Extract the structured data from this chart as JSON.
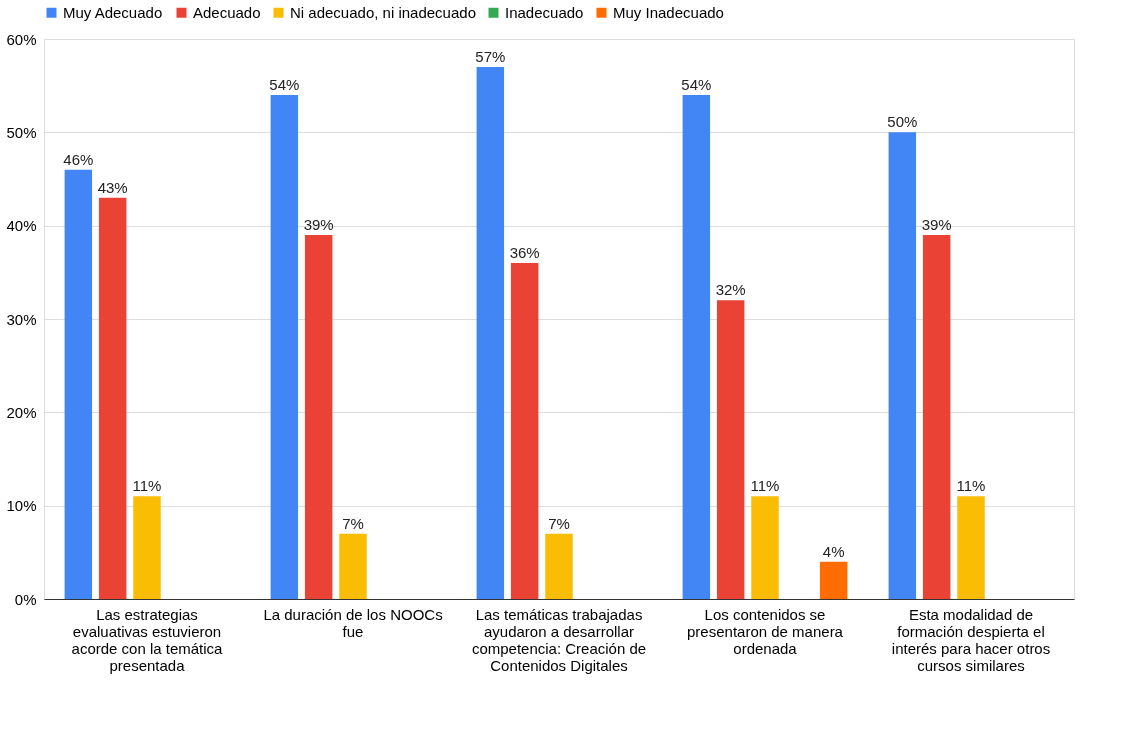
{
  "chart_data": {
    "type": "bar",
    "categories": [
      "Las estrategias evaluativas estuvieron acorde con la temática presentada",
      "La duración de los NOOCs fue",
      "Las temáticas trabajadas ayudaron a desarrollar competencia: Creación de Contenidos Digitales",
      "Los contenidos se presentaron de manera ordenada",
      "Esta modalidad de formación despierta el interés para hacer otros cursos similares"
    ],
    "series": [
      {
        "name": "Muy Adecuado",
        "color": "#4285f4",
        "values": [
          46,
          54,
          57,
          54,
          50
        ],
        "value_labels": [
          "46%",
          "54%",
          "57%",
          "54%",
          "50%"
        ]
      },
      {
        "name": "Adecuado",
        "color": "#ea4335",
        "values": [
          43,
          39,
          36,
          32,
          39
        ],
        "value_labels": [
          "43%",
          "39%",
          "36%",
          "32%",
          "39%"
        ]
      },
      {
        "name": "Ni adecuado, ni inadecuado",
        "color": "#fbbc04",
        "values": [
          11,
          7,
          7,
          11,
          11
        ],
        "value_labels": [
          "11%",
          "7%",
          "7%",
          "11%",
          "11%"
        ]
      },
      {
        "name": "Inadecuado",
        "color": "#34a853",
        "values": [
          null,
          null,
          null,
          null,
          null
        ]
      },
      {
        "name": "Muy Inadecuado",
        "color": "#ff6d01",
        "values": [
          null,
          null,
          null,
          4,
          null
        ],
        "value_labels": [
          null,
          null,
          null,
          "4%",
          null
        ]
      }
    ],
    "ylim": [
      0,
      60
    ],
    "yticks": [
      {
        "value": 0,
        "label": "0%"
      },
      {
        "value": 10,
        "label": "10%"
      },
      {
        "value": 20,
        "label": "20%"
      },
      {
        "value": 30,
        "label": "30%"
      },
      {
        "value": 40,
        "label": "40%"
      },
      {
        "value": 50,
        "label": "50%"
      },
      {
        "value": 60,
        "label": "60%"
      }
    ],
    "grid": "y",
    "legend": "top"
  }
}
